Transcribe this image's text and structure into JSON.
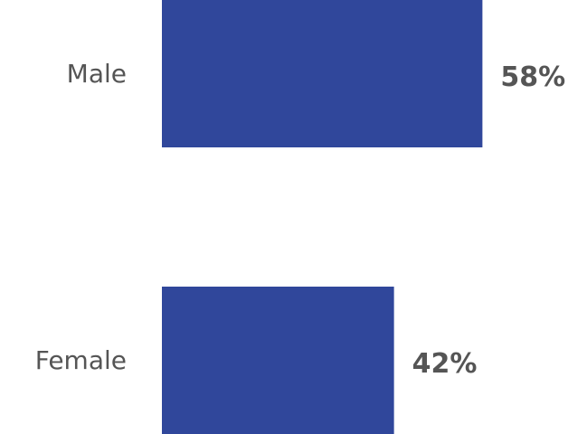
{
  "colors": {
    "bar": "#30479b",
    "text": "#555555",
    "background": "#ffffff"
  },
  "chart_data": {
    "type": "bar",
    "orientation": "horizontal",
    "categories": [
      "Male",
      "Female"
    ],
    "values": [
      58,
      42
    ],
    "value_labels": [
      "58%",
      "42%"
    ],
    "unit": "%",
    "xlim": [
      0,
      100
    ],
    "grid": false,
    "legend": "none"
  }
}
